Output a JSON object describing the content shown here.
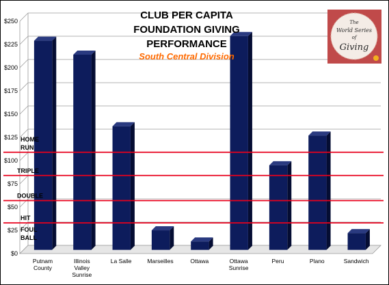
{
  "chart_data": {
    "type": "bar",
    "title_lines": [
      "CLUB PER CAPITA",
      "FOUNDATION GIVING",
      "PERFORMANCE"
    ],
    "subtitle": "South Central Division",
    "categories": [
      [
        "Putnam",
        "County"
      ],
      [
        "Illinois",
        "Valley",
        "Sunrise"
      ],
      [
        "La Salle"
      ],
      [
        "Marseilles"
      ],
      [
        "Ottawa"
      ],
      [
        "Ottawa",
        "Sunrise"
      ],
      [
        "Peru"
      ],
      [
        "Plano"
      ],
      [
        "Sandwich"
      ]
    ],
    "values": [
      225,
      210,
      133,
      21,
      9,
      230,
      91,
      123,
      18
    ],
    "ylim": [
      0,
      250
    ],
    "y_ticks": [
      0,
      25,
      50,
      75,
      100,
      125,
      150,
      175,
      200,
      225,
      250
    ],
    "y_tick_labels": [
      "$0",
      "$25",
      "$50",
      "$75",
      "$100",
      "$125",
      "$150",
      "$175",
      "$200",
      "$225",
      "$250"
    ],
    "grid": true,
    "reference_lines": [
      {
        "label": [
          "HOME",
          "RUN"
        ],
        "value": 109
      },
      {
        "label": [
          "TRIPLE"
        ],
        "value": 84
      },
      {
        "label": [
          "DOUBLE"
        ],
        "value": 57
      },
      {
        "label": [
          "HIT"
        ],
        "value": 33
      },
      {
        "label": [
          "FOUL",
          "BALL"
        ],
        "value": null
      }
    ],
    "colors": {
      "bar_front": "#0d1c5c",
      "bar_side": "#050d33",
      "bar_top": "#2a3a80",
      "reference_line": "#e8001c",
      "subtitle": "#ff6a00",
      "logo_bg": "#c04a4a"
    }
  },
  "logo": {
    "lines": [
      "The",
      "World Series",
      "of",
      "Giving"
    ]
  }
}
